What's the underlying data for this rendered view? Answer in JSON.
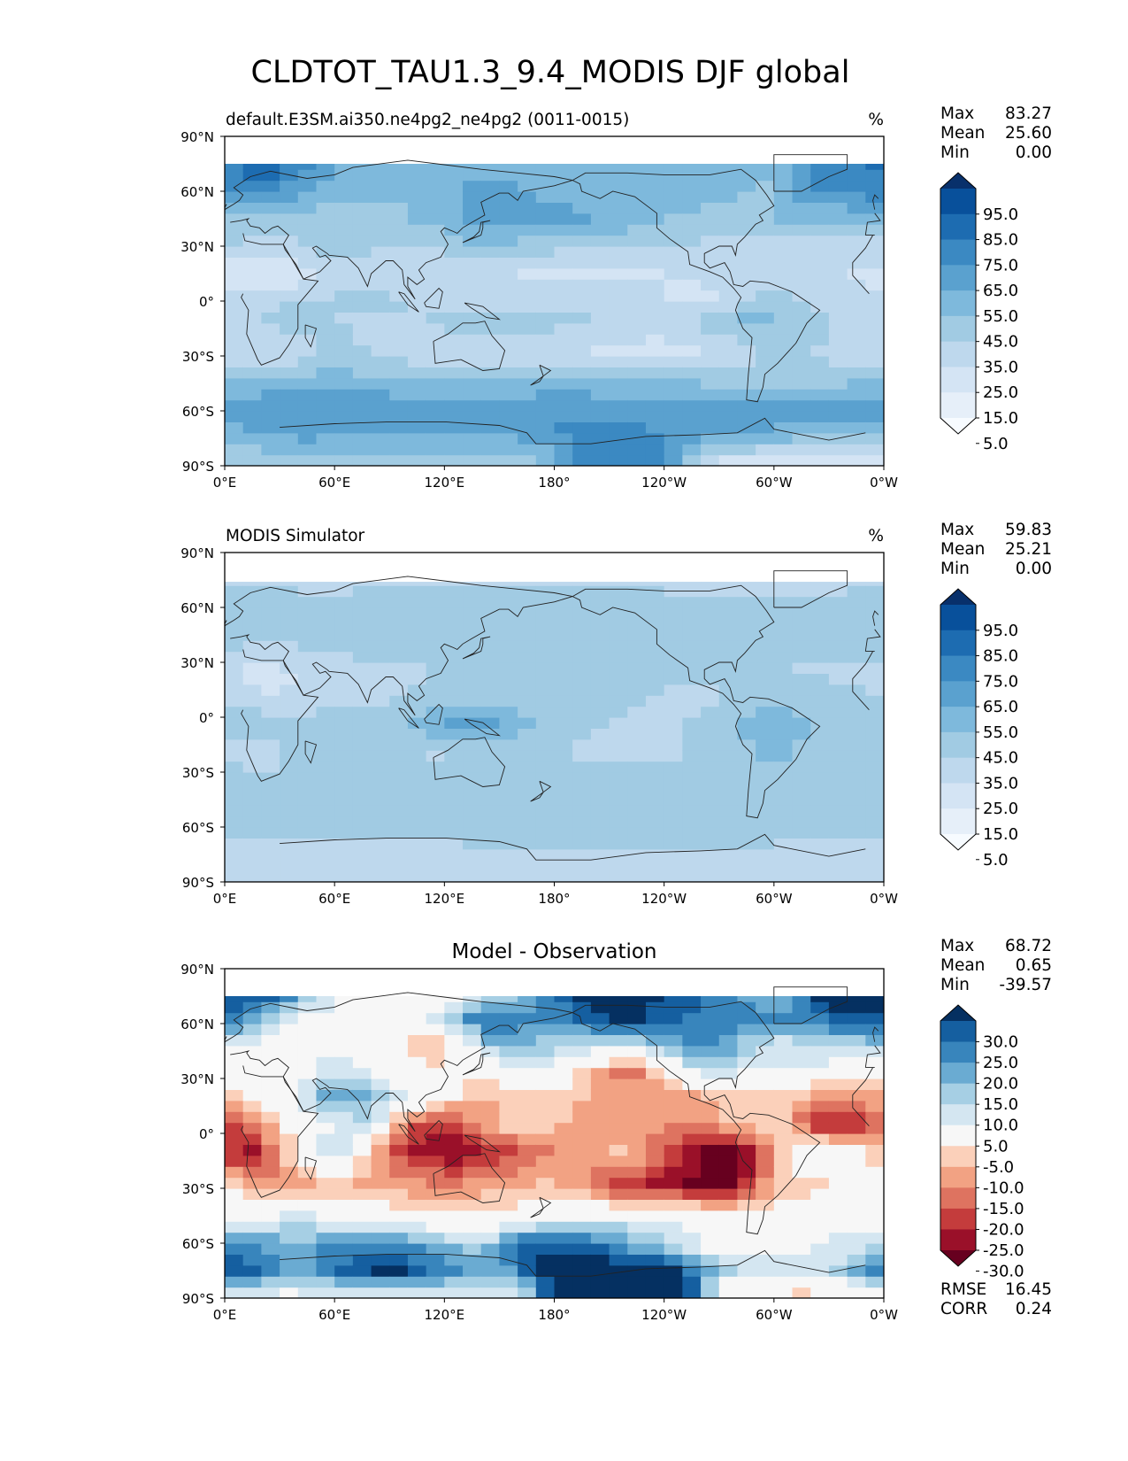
{
  "figure": {
    "title": "CLDTOT_TAU1.3_9.4_MODIS DJF global"
  },
  "axes_ticks": {
    "lat": [
      "90°N",
      "60°N",
      "30°N",
      "0°",
      "30°S",
      "60°S",
      "90°S"
    ],
    "lon": [
      "0°E",
      "60°E",
      "120°E",
      "180°",
      "120°W",
      "60°W",
      "0°W"
    ]
  },
  "palettes": {
    "blues": [
      "#f7fbff",
      "#e6eff9",
      "#d4e4f4",
      "#bed8ed",
      "#a1cbe3",
      "#7eb9dc",
      "#5aa1cf",
      "#3b89c2",
      "#1d6cb1",
      "#08509b",
      "#08306b"
    ],
    "diff": [
      "#67001f",
      "#9a1029",
      "#c43c3c",
      "#de7360",
      "#f2a283",
      "#fbd0ba",
      "#f7f7f7",
      "#d4e6f1",
      "#a6cfe4",
      "#6aabd2",
      "#3885bc",
      "#155fa0",
      "#053061"
    ]
  },
  "chart_data": [
    {
      "type": "heatmap",
      "title_left": "default.E3SM.ai350.ne4pg2_ne4pg2 (0011-0015)",
      "title_center": "",
      "units": "%",
      "x_range": [
        0,
        360
      ],
      "y_range": [
        -90,
        90
      ],
      "stats": {
        "labels": [
          "Max",
          "Mean",
          "Min"
        ],
        "values": [
          "83.27",
          "25.60",
          "0.00"
        ]
      },
      "colorbar": {
        "palette": "blues",
        "extend": "both",
        "labels": [
          "95.0",
          "85.0",
          "75.0",
          "65.0",
          "55.0",
          "45.0",
          "35.0",
          "25.0",
          "15.0",
          "5.0"
        ]
      },
      "field": {
        "lat_band": [
          -90,
          75
        ],
        "bands": [
          {
            "lat": -90,
            "lon": [
              0,
              90,
              170,
              200,
              240,
              270,
              360
            ],
            "val": [
              25,
              28,
              32,
              60,
              55,
              8,
              5
            ]
          },
          {
            "lat": -70,
            "lon": [
              0,
              40,
              100,
              160,
              200,
              260,
              320,
              360
            ],
            "val": [
              40,
              52,
              45,
              48,
              60,
              52,
              42,
              40
            ]
          },
          {
            "lat": -58,
            "lon": [
              0,
              60,
              120,
              180,
              240,
              300,
              360
            ],
            "val": [
              50,
              55,
              48,
              52,
              50,
              48,
              50
            ]
          },
          {
            "lat": -45,
            "lon": [
              0,
              60,
              120,
              180,
              240,
              300,
              360
            ],
            "val": [
              38,
              42,
              35,
              40,
              38,
              30,
              38
            ]
          },
          {
            "lat": -30,
            "lon": [
              0,
              20,
              60,
              120,
              180,
              240,
              280,
              300,
              340,
              360
            ],
            "val": [
              20,
              12,
              28,
              18,
              15,
              10,
              18,
              30,
              20,
              20
            ]
          },
          {
            "lat": -10,
            "lon": [
              0,
              10,
              30,
              60,
              100,
              150,
              180,
              240,
              290,
              300,
              360
            ],
            "val": [
              12,
              22,
              30,
              25,
              22,
              35,
              28,
              18,
              40,
              35,
              15
            ]
          },
          {
            "lat": 0,
            "lon": [
              0,
              40,
              90,
              120,
              160,
              200,
              260,
              300,
              330,
              360
            ],
            "val": [
              18,
              26,
              28,
              22,
              18,
              25,
              10,
              30,
              20,
              15
            ]
          },
          {
            "lat": 15,
            "lon": [
              0,
              30,
              60,
              90,
              120,
              180,
              240,
              300,
              360
            ],
            "val": [
              8,
              5,
              20,
              15,
              20,
              12,
              15,
              20,
              12
            ]
          },
          {
            "lat": 30,
            "lon": [
              0,
              20,
              60,
              110,
              140,
              180,
              240,
              300,
              360
            ],
            "val": [
              25,
              18,
              30,
              22,
              35,
              28,
              25,
              22,
              20
            ]
          },
          {
            "lat": 45,
            "lon": [
              0,
              40,
              80,
              140,
              180,
              220,
              260,
              300,
              360
            ],
            "val": [
              35,
              30,
              28,
              48,
              50,
              40,
              28,
              35,
              38
            ]
          },
          {
            "lat": 60,
            "lon": [
              0,
              20,
              60,
              100,
              140,
              180,
              220,
              260,
              300,
              320,
              360
            ],
            "val": [
              55,
              60,
              40,
              35,
              50,
              42,
              38,
              45,
              30,
              55,
              60
            ]
          },
          {
            "lat": 75,
            "lon": [
              0,
              20,
              60,
              120,
              180,
              240,
              300,
              320,
              360
            ],
            "val": [
              62,
              75,
              45,
              35,
              40,
              35,
              40,
              60,
              68
            ]
          }
        ]
      }
    },
    {
      "type": "heatmap",
      "title_left": "MODIS Simulator",
      "title_center": "",
      "units": "%",
      "x_range": [
        0,
        360
      ],
      "y_range": [
        -90,
        90
      ],
      "stats": {
        "labels": [
          "Max",
          "Mean",
          "Min"
        ],
        "values": [
          "59.83",
          "25.21",
          "0.00"
        ]
      },
      "colorbar": {
        "palette": "blues",
        "extend": "both",
        "labels": [
          "95.0",
          "85.0",
          "75.0",
          "65.0",
          "55.0",
          "45.0",
          "35.0",
          "25.0",
          "15.0",
          "5.0"
        ]
      },
      "field": {
        "lat_band": [
          -90,
          74
        ],
        "bands": [
          {
            "lat": -90,
            "lon": [
              0,
              120,
              240,
              360
            ],
            "val": [
              18,
              20,
              18,
              18
            ]
          },
          {
            "lat": -75,
            "lon": [
              0,
              60,
              120,
              180,
              240,
              300,
              360
            ],
            "val": [
              15,
              18,
              22,
              25,
              24,
              22,
              15
            ]
          },
          {
            "lat": -60,
            "lon": [
              0,
              60,
              120,
              180,
              240,
              300,
              360
            ],
            "val": [
              28,
              30,
              29,
              28,
              28,
              30,
              28
            ]
          },
          {
            "lat": -40,
            "lon": [
              0,
              60,
              120,
              180,
              240,
              300,
              360
            ],
            "val": [
              32,
              30,
              28,
              30,
              32,
              30,
              32
            ]
          },
          {
            "lat": -20,
            "lon": [
              0,
              20,
              40,
              120,
              140,
              180,
              240,
              300,
              340,
              360
            ],
            "val": [
              25,
              12,
              30,
              24,
              28,
              25,
              22,
              38,
              28,
              25
            ]
          },
          {
            "lat": -5,
            "lon": [
              0,
              20,
              40,
              100,
              120,
              150,
              180,
              240,
              300,
              340,
              360
            ],
            "val": [
              28,
              35,
              30,
              32,
              50,
              48,
              28,
              20,
              42,
              25,
              28
            ]
          },
          {
            "lat": 10,
            "lon": [
              0,
              30,
              60,
              120,
              180,
              220,
              260,
              300,
              360
            ],
            "val": [
              25,
              15,
              22,
              28,
              30,
              26,
              22,
              35,
              25
            ]
          },
          {
            "lat": 25,
            "lon": [
              0,
              20,
              60,
              120,
              180,
              240,
              300,
              360
            ],
            "val": [
              18,
              10,
              22,
              25,
              30,
              28,
              25,
              22
            ]
          },
          {
            "lat": 45,
            "lon": [
              0,
              60,
              120,
              180,
              240,
              300,
              360
            ],
            "val": [
              30,
              28,
              30,
              35,
              32,
              30,
              30
            ]
          },
          {
            "lat": 60,
            "lon": [
              0,
              60,
              120,
              180,
              240,
              300,
              360
            ],
            "val": [
              32,
              28,
              30,
              34,
              30,
              28,
              32
            ]
          },
          {
            "lat": 74,
            "lon": [
              0,
              120,
              240,
              360
            ],
            "val": [
              22,
              24,
              22,
              22
            ]
          }
        ]
      }
    },
    {
      "type": "heatmap",
      "title_left": "",
      "title_center": "Model - Observation",
      "units": "",
      "x_range": [
        0,
        360
      ],
      "y_range": [
        -90,
        90
      ],
      "stats": {
        "labels": [
          "Max",
          "Mean",
          "Min"
        ],
        "values": [
          "68.72",
          "0.65",
          "-39.57"
        ]
      },
      "extra_stats": {
        "labels": [
          "RMSE",
          "CORR"
        ],
        "values": [
          "16.45",
          "0.24"
        ]
      },
      "colorbar": {
        "palette": "diff",
        "extend": "both",
        "labels": [
          "30.0",
          "25.0",
          "20.0",
          "15.0",
          "10.0",
          "5.0",
          "-5.0",
          "-10.0",
          "-15.0",
          "-20.0",
          "-25.0",
          "-30.0"
        ]
      },
      "field": {
        "lat_band": [
          -90,
          75
        ],
        "bands": [
          {
            "lat": -90,
            "lon": [
              0,
              160,
              180,
              200,
              260,
              270,
              360
            ],
            "val": [
              0,
              5,
              30,
              35,
              30,
              -8,
              -8
            ]
          },
          {
            "lat": -75,
            "lon": [
              0,
              40,
              90,
              150,
              180,
              240,
              270,
              320,
              360
            ],
            "val": [
              30,
              18,
              32,
              15,
              35,
              35,
              12,
              5,
              25
            ]
          },
          {
            "lat": -62,
            "lon": [
              0,
              40,
              90,
              140,
              160,
              200,
              250,
              280,
              360
            ],
            "val": [
              22,
              18,
              25,
              10,
              30,
              28,
              8,
              0,
              10
            ]
          },
          {
            "lat": -45,
            "lon": [
              0,
              40,
              100,
              140,
              200,
              260,
              300,
              360
            ],
            "val": [
              2,
              6,
              -2,
              -5,
              4,
              2,
              0,
              2
            ]
          },
          {
            "lat": -28,
            "lon": [
              0,
              20,
              60,
              120,
              180,
              210,
              250,
              270,
              300,
              360
            ],
            "val": [
              -5,
              -15,
              -10,
              -15,
              -8,
              -22,
              -28,
              -38,
              -10,
              0
            ]
          },
          {
            "lat": -10,
            "lon": [
              0,
              10,
              30,
              60,
              100,
              130,
              180,
              220,
              270,
              290,
              320,
              360
            ],
            "val": [
              -15,
              -35,
              -12,
              10,
              -25,
              -30,
              -15,
              -8,
              -38,
              -25,
              8,
              -10
            ]
          },
          {
            "lat": 5,
            "lon": [
              0,
              40,
              80,
              100,
              120,
              160,
              200,
              250,
              300,
              330,
              360
            ],
            "val": [
              -25,
              0,
              10,
              -20,
              -25,
              -5,
              -12,
              -15,
              -5,
              -30,
              -20
            ]
          },
          {
            "lat": 20,
            "lon": [
              0,
              40,
              60,
              80,
              100,
              140,
              180,
              240,
              300,
              330,
              360
            ],
            "val": [
              -10,
              5,
              20,
              15,
              5,
              -10,
              -8,
              -15,
              -5,
              -15,
              -10
            ]
          },
          {
            "lat": 35,
            "lon": [
              0,
              20,
              60,
              100,
              140,
              180,
              220,
              260,
              300,
              360
            ],
            "val": [
              0,
              -5,
              10,
              -5,
              -2,
              5,
              -20,
              10,
              5,
              0
            ]
          },
          {
            "lat": 50,
            "lon": [
              0,
              40,
              80,
              120,
              150,
              180,
              220,
              260,
              300,
              360
            ],
            "val": [
              8,
              0,
              2,
              -10,
              20,
              12,
              10,
              25,
              8,
              15
            ]
          },
          {
            "lat": 62,
            "lon": [
              0,
              20,
              60,
              100,
              140,
              180,
              220,
              250,
              300,
              360
            ],
            "val": [
              25,
              10,
              0,
              -5,
              25,
              20,
              32,
              25,
              20,
              30
            ]
          },
          {
            "lat": 75,
            "lon": [
              0,
              20,
              60,
              120,
              160,
              200,
              240,
              300,
              330,
              360
            ],
            "val": [
              30,
              32,
              5,
              0,
              15,
              35,
              30,
              15,
              35,
              35
            ]
          }
        ]
      }
    }
  ]
}
